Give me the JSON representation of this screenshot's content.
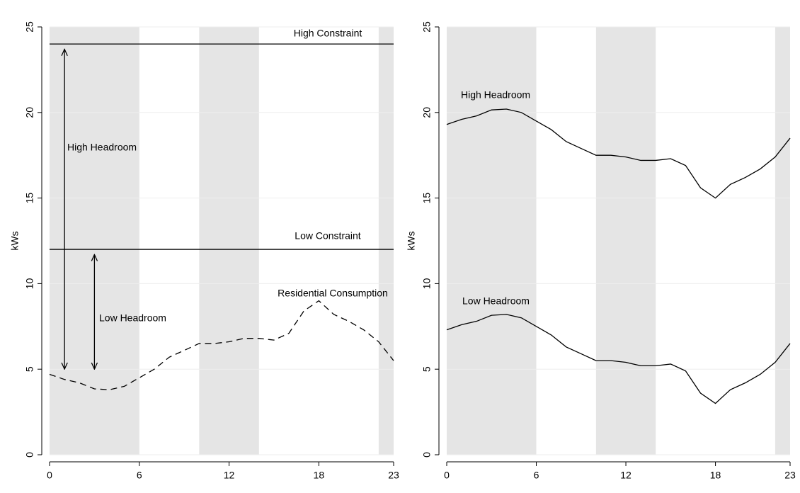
{
  "chart_data": [
    {
      "type": "line",
      "ylabel": "kWs",
      "xlim": [
        0,
        23
      ],
      "xticks": [
        0,
        6,
        12,
        18,
        23
      ],
      "ylim": [
        0,
        25
      ],
      "yticks": [
        0,
        5,
        10,
        15,
        20,
        25
      ],
      "grid": true,
      "shaded": [
        [
          0,
          6
        ],
        [
          10,
          14
        ],
        [
          22,
          23
        ]
      ],
      "shade_color": "#e5e5e5",
      "x": [
        0,
        1,
        2,
        3,
        4,
        5,
        6,
        7,
        8,
        9,
        10,
        11,
        12,
        13,
        14,
        15,
        16,
        17,
        18,
        19,
        20,
        21,
        22,
        23
      ],
      "series": [
        {
          "name": "Residential Consumption",
          "color": "#000000",
          "dash": true,
          "values": [
            4.7,
            4.4,
            4.2,
            3.85,
            3.8,
            4.0,
            4.5,
            5.0,
            5.7,
            6.1,
            6.5,
            6.5,
            6.6,
            6.8,
            6.8,
            6.7,
            7.1,
            8.4,
            9.0,
            8.2,
            7.8,
            7.3,
            6.6,
            5.5
          ]
        }
      ],
      "hlines": [
        {
          "label": "High Constraint",
          "value": 24
        },
        {
          "label": "Low Constraint",
          "value": 12
        }
      ],
      "arrows": [
        {
          "label": "High Headroom",
          "x": 1,
          "y": [
            5,
            23.7
          ]
        },
        {
          "label": "Low Headroom",
          "x": 3,
          "y": [
            5,
            11.7
          ]
        }
      ]
    },
    {
      "type": "line",
      "ylabel": "kWs",
      "xlim": [
        0,
        23
      ],
      "xticks": [
        0,
        6,
        12,
        18,
        23
      ],
      "ylim": [
        0,
        25
      ],
      "yticks": [
        0,
        5,
        10,
        15,
        20,
        25
      ],
      "grid": true,
      "shaded": [
        [
          0,
          6
        ],
        [
          10,
          14
        ],
        [
          22,
          23
        ]
      ],
      "shade_color": "#e5e5e5",
      "x": [
        0,
        1,
        2,
        3,
        4,
        5,
        6,
        7,
        8,
        9,
        10,
        11,
        12,
        13,
        14,
        15,
        16,
        17,
        18,
        19,
        20,
        21,
        22,
        23
      ],
      "series": [
        {
          "name": "High Headroom",
          "color": "#000000",
          "dash": false,
          "values": [
            19.3,
            19.6,
            19.8,
            20.15,
            20.2,
            20.0,
            19.5,
            19.0,
            18.3,
            17.9,
            17.5,
            17.5,
            17.4,
            17.2,
            17.2,
            17.3,
            16.9,
            15.6,
            15.0,
            15.8,
            16.2,
            16.7,
            17.4,
            18.5
          ]
        },
        {
          "name": "Low Headroom",
          "color": "#000000",
          "dash": false,
          "values": [
            7.3,
            7.6,
            7.8,
            8.15,
            8.2,
            8.0,
            7.5,
            7.0,
            6.3,
            5.9,
            5.5,
            5.5,
            5.4,
            5.2,
            5.2,
            5.3,
            4.9,
            3.6,
            3.0,
            3.8,
            4.2,
            4.7,
            5.4,
            6.5
          ]
        }
      ]
    }
  ]
}
